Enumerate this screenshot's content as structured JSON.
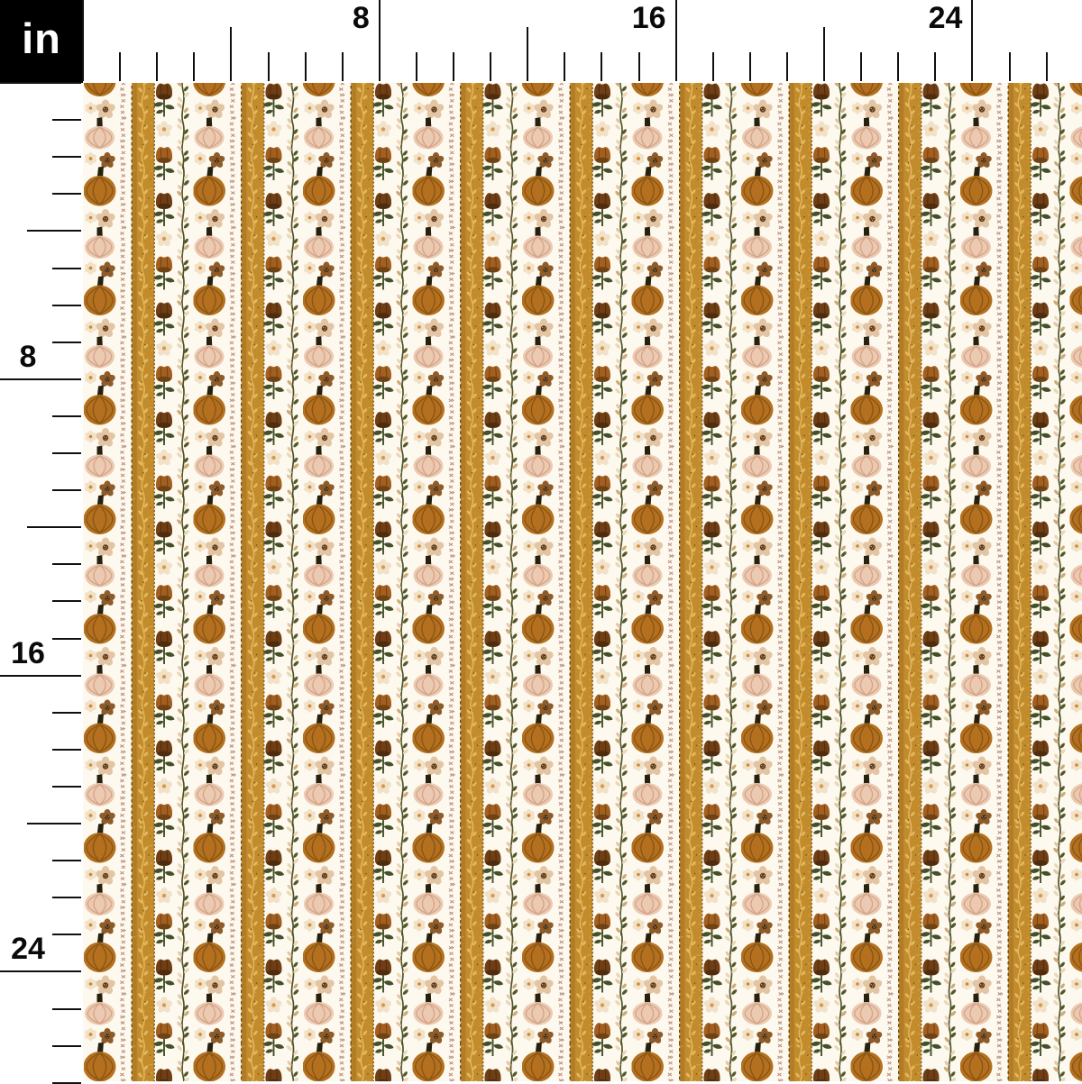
{
  "ruler": {
    "unit_label": "in",
    "top_labels": [
      {
        "text": "8",
        "inches": 8
      },
      {
        "text": "16",
        "inches": 16
      },
      {
        "text": "24",
        "inches": 24
      }
    ],
    "left_labels": [
      {
        "text": "8",
        "inches": 8
      },
      {
        "text": "16",
        "inches": 16
      },
      {
        "text": "24",
        "inches": 24
      }
    ]
  },
  "pattern": {
    "description": "Autumn pumpkin and floral vertical-stripe fabric swatch on cream",
    "motifs": [
      "orange-pumpkin",
      "blush-pumpkin",
      "cream-flower",
      "tan-flower",
      "brown-flower",
      "cross-stitch-stripe",
      "gold-ribbon-stripe",
      "dark-poppy",
      "rust-poppy",
      "cream-poppy-daisy",
      "leaf-vine"
    ],
    "colors": {
      "background": "#fdf9ee",
      "pumpkin_orange": "#b4701e",
      "pumpkin_orange_rib": "#875415",
      "pumpkin_pink": "#ecc9b1",
      "pumpkin_pink_rib": "#d3a487",
      "stem": "#26200f",
      "gold": "#c28c2d",
      "gold_dark": "#b17c25",
      "gold_light": "#e3b75f",
      "gold_dot": "#daa94a",
      "gold_border": "#6e4a15",
      "stitch": "#bd9282",
      "stitch_dark": "#86654f",
      "poppy_dark": "#6f3e14",
      "poppy_dark_base": "#4f2c0e",
      "poppy_rust": "#a35f20",
      "poppy_rust_base": "#6f4214",
      "leaf_green": "#445028",
      "vine_green": "#4d5429",
      "flower_cream": "#f1e1c9",
      "flower_center_orange": "#d08a30",
      "flower_tan": "#e3c4a3",
      "flower_tan_center": "#5d3b1b",
      "flower_brown": "#8e5b29",
      "flower_brown_center": "#3b2710",
      "flower_dot_light": "#ecd0a0",
      "daisy_center": "#d89a4a",
      "bud_cream": "#e9d8b8",
      "bud_tan": "#cdab79",
      "bud_pink": "#e5c6a8",
      "bud_olive": "#55582c",
      "ruler_tick": "#101010"
    }
  }
}
